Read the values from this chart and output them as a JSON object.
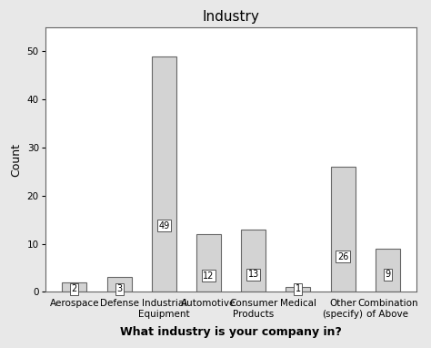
{
  "title": "Industry",
  "xlabel": "What industry is your company in?",
  "ylabel": "Count",
  "categories": [
    "Aerospace",
    "Defense",
    "Industrial\nEquipment",
    "Automotive",
    "Consumer\nProducts",
    "Medical",
    "Other\n(specify)",
    "Combination\nof Above"
  ],
  "values": [
    2,
    3,
    49,
    12,
    13,
    1,
    26,
    9
  ],
  "bar_color": "#d3d3d3",
  "bar_edge_color": "#666666",
  "ylim": [
    0,
    55
  ],
  "yticks": [
    0,
    10,
    20,
    30,
    40,
    50
  ],
  "title_fontsize": 11,
  "ylabel_fontsize": 9,
  "xlabel_fontsize": 9,
  "xlabel_fontweight": "bold",
  "tick_fontsize": 7.5,
  "label_fontsize": 7,
  "bg_color": "#e8e8e8",
  "plot_bg_color": "#ffffff"
}
